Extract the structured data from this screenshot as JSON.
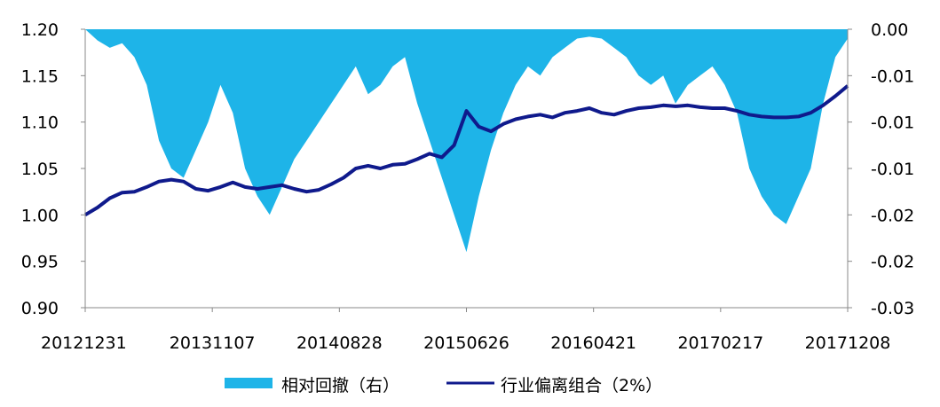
{
  "chart_data": {
    "type": "line",
    "xlabel": "",
    "ylabel": "",
    "x_tick_labels": [
      "20121231",
      "20131107",
      "20140828",
      "20150626",
      "20160421",
      "20170217",
      "20171208"
    ],
    "y_left": {
      "ylim": [
        0.9,
        1.2
      ],
      "ticks": [
        "0.90",
        "0.95",
        "1.00",
        "1.05",
        "1.10",
        "1.15",
        "1.20"
      ]
    },
    "y_right": {
      "ylim": [
        -0.03,
        0.0
      ],
      "ticks": [
        "-0.03",
        "-0.02",
        "-0.02",
        "-0.01",
        "-0.01",
        "-0.01",
        "0.00"
      ]
    },
    "legend_position": "bottom",
    "grid": false,
    "series": [
      {
        "name": "相对回撤（右）",
        "kind": "area",
        "axis": "right",
        "color": "#1eb4e8",
        "x": [
          "20121231",
          "20130131",
          "20130228",
          "20130331",
          "20130430",
          "20130531",
          "20130630",
          "20130731",
          "20130831",
          "20130930",
          "20131031",
          "20131107",
          "20131130",
          "20131231",
          "20140131",
          "20140228",
          "20140331",
          "20140430",
          "20140531",
          "20140630",
          "20140731",
          "20140828",
          "20140930",
          "20141031",
          "20141130",
          "20141231",
          "20150131",
          "20150228",
          "20150331",
          "20150430",
          "20150531",
          "20150626",
          "20150731",
          "20150831",
          "20150930",
          "20151031",
          "20151130",
          "20151231",
          "20160131",
          "20160229",
          "20160331",
          "20160421",
          "20160531",
          "20160630",
          "20160731",
          "20160831",
          "20160930",
          "20161031",
          "20161130",
          "20161231",
          "20170131",
          "20170217",
          "20170331",
          "20170430",
          "20170531",
          "20170630",
          "20170731",
          "20170831",
          "20170930",
          "20171031",
          "20171130",
          "20171208",
          "20171231"
        ],
        "values": [
          0.0,
          -0.0012,
          -0.002,
          -0.0015,
          -0.003,
          -0.006,
          -0.012,
          -0.015,
          -0.016,
          -0.013,
          -0.01,
          -0.006,
          -0.009,
          -0.015,
          -0.018,
          -0.02,
          -0.017,
          -0.014,
          -0.012,
          -0.01,
          -0.008,
          -0.006,
          -0.004,
          -0.007,
          -0.006,
          -0.004,
          -0.003,
          -0.008,
          -0.012,
          -0.016,
          -0.02,
          -0.024,
          -0.018,
          -0.013,
          -0.009,
          -0.006,
          -0.004,
          -0.005,
          -0.003,
          -0.002,
          -0.001,
          -0.0008,
          -0.001,
          -0.002,
          -0.003,
          -0.005,
          -0.006,
          -0.005,
          -0.008,
          -0.006,
          -0.005,
          -0.004,
          -0.006,
          -0.009,
          -0.015,
          -0.018,
          -0.02,
          -0.021,
          -0.018,
          -0.015,
          -0.008,
          -0.003,
          -0.001
        ]
      },
      {
        "name": "行业偏离组合（2%）",
        "kind": "line",
        "axis": "left",
        "color": "#0f1a8c",
        "x": [
          "20121231",
          "20130131",
          "20130228",
          "20130331",
          "20130430",
          "20130531",
          "20130630",
          "20130731",
          "20130831",
          "20130930",
          "20131031",
          "20131107",
          "20131130",
          "20131231",
          "20140131",
          "20140228",
          "20140331",
          "20140430",
          "20140531",
          "20140630",
          "20140731",
          "20140828",
          "20140930",
          "20141031",
          "20141130",
          "20141231",
          "20150131",
          "20150228",
          "20150331",
          "20150430",
          "20150531",
          "20150626",
          "20150731",
          "20150831",
          "20150930",
          "20151031",
          "20151130",
          "20151231",
          "20160131",
          "20160229",
          "20160331",
          "20160421",
          "20160531",
          "20160630",
          "20160731",
          "20160831",
          "20160930",
          "20161031",
          "20161130",
          "20161231",
          "20170131",
          "20170217",
          "20170331",
          "20170430",
          "20170531",
          "20170630",
          "20170731",
          "20170831",
          "20170930",
          "20171031",
          "20171130",
          "20171208",
          "20171231"
        ],
        "values": [
          1.0,
          1.008,
          1.018,
          1.024,
          1.025,
          1.03,
          1.036,
          1.038,
          1.036,
          1.028,
          1.026,
          1.03,
          1.035,
          1.03,
          1.028,
          1.03,
          1.032,
          1.028,
          1.025,
          1.027,
          1.033,
          1.04,
          1.05,
          1.053,
          1.05,
          1.054,
          1.055,
          1.06,
          1.066,
          1.062,
          1.075,
          1.112,
          1.095,
          1.09,
          1.098,
          1.103,
          1.106,
          1.108,
          1.105,
          1.11,
          1.112,
          1.115,
          1.11,
          1.108,
          1.112,
          1.115,
          1.116,
          1.118,
          1.117,
          1.118,
          1.116,
          1.115,
          1.115,
          1.112,
          1.108,
          1.106,
          1.105,
          1.105,
          1.106,
          1.11,
          1.118,
          1.128,
          1.139
        ]
      }
    ]
  }
}
